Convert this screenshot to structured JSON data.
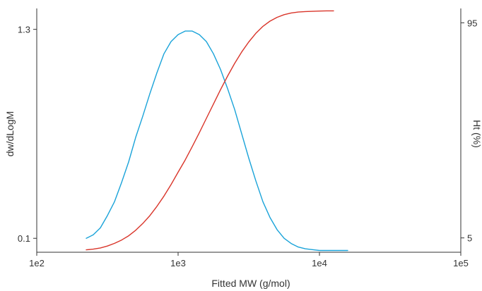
{
  "chart_data": {
    "type": "line",
    "title": "",
    "xlabel": "Fitted MW (g/mol)",
    "ylabel_left": "dw/dLogM",
    "ylabel_right": "Ht (%)",
    "x_scale": "log",
    "xlim": [
      100,
      100000
    ],
    "x_ticks": [
      {
        "value": 100,
        "label": "1e2"
      },
      {
        "value": 1000,
        "label": "1e3"
      },
      {
        "value": 10000,
        "label": "1e4"
      },
      {
        "value": 100000,
        "label": "1e5"
      }
    ],
    "y_left_lim": [
      0.02,
      1.42
    ],
    "y_left_ticks": [
      {
        "value": 0.1,
        "label": "0.1"
      },
      {
        "value": 1.3,
        "label": "1.3"
      }
    ],
    "y_right_lim": [
      -1,
      101
    ],
    "y_right_ticks": [
      {
        "value": 5,
        "label": "5"
      },
      {
        "value": 95,
        "label": "95"
      }
    ],
    "grid": false,
    "legend": "none",
    "series": [
      {
        "axis": "left",
        "color": "#1aa3d9",
        "x": [
          224,
          251,
          282,
          316,
          355,
          398,
          447,
          501,
          562,
          631,
          708,
          794,
          891,
          1000,
          1122,
          1259,
          1413,
          1585,
          1778,
          1995,
          2239,
          2512,
          2818,
          3162,
          3548,
          3981,
          4467,
          5012,
          5623,
          6310,
          7079,
          7943,
          8913,
          10000,
          11220,
          12590,
          14130,
          15850
        ],
        "values": [
          0.1,
          0.12,
          0.16,
          0.23,
          0.31,
          0.42,
          0.54,
          0.68,
          0.8,
          0.93,
          1.05,
          1.16,
          1.23,
          1.27,
          1.29,
          1.29,
          1.27,
          1.23,
          1.16,
          1.07,
          0.96,
          0.84,
          0.7,
          0.56,
          0.43,
          0.31,
          0.22,
          0.15,
          0.1,
          0.07,
          0.05,
          0.04,
          0.035,
          0.03,
          0.03,
          0.03,
          0.03,
          0.03
        ]
      },
      {
        "axis": "right",
        "color": "#d9352a",
        "x": [
          224,
          251,
          282,
          316,
          355,
          398,
          447,
          501,
          562,
          631,
          708,
          794,
          891,
          1000,
          1122,
          1259,
          1413,
          1585,
          1778,
          1995,
          2239,
          2512,
          2818,
          3162,
          3548,
          3981,
          4467,
          5012,
          5623,
          6310,
          7079,
          7943,
          8913,
          10000,
          11220,
          12590
        ],
        "values": [
          0.0,
          0.3,
          0.8,
          1.6,
          2.7,
          4.1,
          5.9,
          8.2,
          11.0,
          14.3,
          18.2,
          22.5,
          27.3,
          32.5,
          37.6,
          43.2,
          49.0,
          55.0,
          61.0,
          67.0,
          72.7,
          78.0,
          82.8,
          87.0,
          90.6,
          93.5,
          95.7,
          97.3,
          98.4,
          99.1,
          99.5,
          99.7,
          99.8,
          99.9,
          100.0,
          100.0
        ]
      }
    ]
  }
}
